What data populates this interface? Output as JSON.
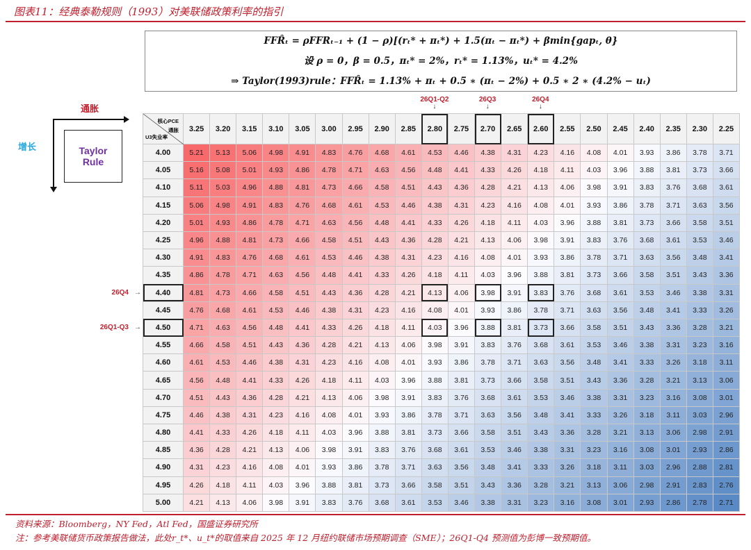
{
  "title": "图表11：经典泰勒规则（1993）对美联储政策利率的指引",
  "formula": {
    "line1": "FFR̂ₜ = ρFFRₜ₋₁ + (1 − ρ)[(rₜ* + πₜ*) + 1.5(πₜ − πₜ*) + βmin{gapₜ, θ}",
    "line2": "设 ρ = 0，β = 0.5，πₜ* = 2%，rₜ* = 1.13%，uₜ* = 4.2%",
    "line3": "⇒ Taylor(1993)rule：FFR̂ₜ = 1.13% + πₜ + 0.5 ∗ (πₜ − 2%) + 0.5 ∗ 2 ∗ (4.2% − uₜ)"
  },
  "diagram": {
    "inflation_label": "通胀",
    "growth_label": "增长",
    "box_label_1": "Taylor",
    "box_label_2": "Rule"
  },
  "annotations": {
    "top": [
      {
        "label": "26Q1-Q2",
        "column": "2.80"
      },
      {
        "label": "26Q3",
        "column": "2.70"
      },
      {
        "label": "26Q4",
        "column": "2.60"
      }
    ],
    "top_arrow": "↓",
    "left": [
      {
        "label": "26Q4",
        "row": "4.40"
      },
      {
        "label": "26Q1-Q3",
        "row": "4.50"
      }
    ],
    "left_arrow": "→"
  },
  "table": {
    "corner": {
      "col_label_1": "核心PCE",
      "col_label_2": "通胀",
      "row_label": "U3失业率"
    },
    "columns": [
      "3.25",
      "3.20",
      "3.15",
      "3.10",
      "3.05",
      "3.00",
      "2.95",
      "2.90",
      "2.85",
      "2.80",
      "2.75",
      "2.70",
      "2.65",
      "2.60",
      "2.55",
      "2.50",
      "2.45",
      "2.40",
      "2.35",
      "2.30",
      "2.25"
    ],
    "rows": [
      "4.00",
      "4.05",
      "4.10",
      "4.15",
      "4.20",
      "4.25",
      "4.30",
      "4.35",
      "4.40",
      "4.45",
      "4.50",
      "4.55",
      "4.60",
      "4.65",
      "4.70",
      "4.75",
      "4.80",
      "4.85",
      "4.90",
      "4.95",
      "5.00"
    ],
    "highlight_columns": [
      "2.80",
      "2.70",
      "2.60"
    ],
    "highlight_rows": [
      "4.40",
      "4.50"
    ],
    "color_scale": {
      "high": "#f8696b",
      "mid": "#fcfcff",
      "low": "#5a8ac6"
    },
    "values": [
      [
        "5.21",
        "5.13",
        "5.06",
        "4.98",
        "4.91",
        "4.83",
        "4.76",
        "4.68",
        "4.61",
        "4.53",
        "4.46",
        "4.38",
        "4.31",
        "4.23",
        "4.16",
        "4.08",
        "4.01",
        "3.93",
        "3.86",
        "3.78",
        "3.71"
      ],
      [
        "5.16",
        "5.08",
        "5.01",
        "4.93",
        "4.86",
        "4.78",
        "4.71",
        "4.63",
        "4.56",
        "4.48",
        "4.41",
        "4.33",
        "4.26",
        "4.18",
        "4.11",
        "4.03",
        "3.96",
        "3.88",
        "3.81",
        "3.73",
        "3.66"
      ],
      [
        "5.11",
        "5.03",
        "4.96",
        "4.88",
        "4.81",
        "4.73",
        "4.66",
        "4.58",
        "4.51",
        "4.43",
        "4.36",
        "4.28",
        "4.21",
        "4.13",
        "4.06",
        "3.98",
        "3.91",
        "3.83",
        "3.76",
        "3.68",
        "3.61"
      ],
      [
        "5.06",
        "4.98",
        "4.91",
        "4.83",
        "4.76",
        "4.68",
        "4.61",
        "4.53",
        "4.46",
        "4.38",
        "4.31",
        "4.23",
        "4.16",
        "4.08",
        "4.01",
        "3.93",
        "3.86",
        "3.78",
        "3.71",
        "3.63",
        "3.56"
      ],
      [
        "5.01",
        "4.93",
        "4.86",
        "4.78",
        "4.71",
        "4.63",
        "4.56",
        "4.48",
        "4.41",
        "4.33",
        "4.26",
        "4.18",
        "4.11",
        "4.03",
        "3.96",
        "3.88",
        "3.81",
        "3.73",
        "3.66",
        "3.58",
        "3.51"
      ],
      [
        "4.96",
        "4.88",
        "4.81",
        "4.73",
        "4.66",
        "4.58",
        "4.51",
        "4.43",
        "4.36",
        "4.28",
        "4.21",
        "4.13",
        "4.06",
        "3.98",
        "3.91",
        "3.83",
        "3.76",
        "3.68",
        "3.61",
        "3.53",
        "3.46"
      ],
      [
        "4.91",
        "4.83",
        "4.76",
        "4.68",
        "4.61",
        "4.53",
        "4.46",
        "4.38",
        "4.31",
        "4.23",
        "4.16",
        "4.08",
        "4.01",
        "3.93",
        "3.86",
        "3.78",
        "3.71",
        "3.63",
        "3.56",
        "3.48",
        "3.41"
      ],
      [
        "4.86",
        "4.78",
        "4.71",
        "4.63",
        "4.56",
        "4.48",
        "4.41",
        "4.33",
        "4.26",
        "4.18",
        "4.11",
        "4.03",
        "3.96",
        "3.88",
        "3.81",
        "3.73",
        "3.66",
        "3.58",
        "3.51",
        "3.43",
        "3.36"
      ],
      [
        "4.81",
        "4.73",
        "4.66",
        "4.58",
        "4.51",
        "4.43",
        "4.36",
        "4.28",
        "4.21",
        "4.13",
        "4.06",
        "3.98",
        "3.91",
        "3.83",
        "3.76",
        "3.68",
        "3.61",
        "3.53",
        "3.46",
        "3.38",
        "3.31"
      ],
      [
        "4.76",
        "4.68",
        "4.61",
        "4.53",
        "4.46",
        "4.38",
        "4.31",
        "4.23",
        "4.16",
        "4.08",
        "4.01",
        "3.93",
        "3.86",
        "3.78",
        "3.71",
        "3.63",
        "3.56",
        "3.48",
        "3.41",
        "3.33",
        "3.26"
      ],
      [
        "4.71",
        "4.63",
        "4.56",
        "4.48",
        "4.41",
        "4.33",
        "4.26",
        "4.18",
        "4.11",
        "4.03",
        "3.96",
        "3.88",
        "3.81",
        "3.73",
        "3.66",
        "3.58",
        "3.51",
        "3.43",
        "3.36",
        "3.28",
        "3.21"
      ],
      [
        "4.66",
        "4.58",
        "4.51",
        "4.43",
        "4.36",
        "4.28",
        "4.21",
        "4.13",
        "4.06",
        "3.98",
        "3.91",
        "3.83",
        "3.76",
        "3.68",
        "3.61",
        "3.53",
        "3.46",
        "3.38",
        "3.31",
        "3.23",
        "3.16"
      ],
      [
        "4.61",
        "4.53",
        "4.46",
        "4.38",
        "4.31",
        "4.23",
        "4.16",
        "4.08",
        "4.01",
        "3.93",
        "3.86",
        "3.78",
        "3.71",
        "3.63",
        "3.56",
        "3.48",
        "3.41",
        "3.33",
        "3.26",
        "3.18",
        "3.11"
      ],
      [
        "4.56",
        "4.48",
        "4.41",
        "4.33",
        "4.26",
        "4.18",
        "4.11",
        "4.03",
        "3.96",
        "3.88",
        "3.81",
        "3.73",
        "3.66",
        "3.58",
        "3.51",
        "3.43",
        "3.36",
        "3.28",
        "3.21",
        "3.13",
        "3.06"
      ],
      [
        "4.51",
        "4.43",
        "4.36",
        "4.28",
        "4.21",
        "4.13",
        "4.06",
        "3.98",
        "3.91",
        "3.83",
        "3.76",
        "3.68",
        "3.61",
        "3.53",
        "3.46",
        "3.38",
        "3.31",
        "3.23",
        "3.16",
        "3.08",
        "3.01"
      ],
      [
        "4.46",
        "4.38",
        "4.31",
        "4.23",
        "4.16",
        "4.08",
        "4.01",
        "3.93",
        "3.86",
        "3.78",
        "3.71",
        "3.63",
        "3.56",
        "3.48",
        "3.41",
        "3.33",
        "3.26",
        "3.18",
        "3.11",
        "3.03",
        "2.96"
      ],
      [
        "4.41",
        "4.33",
        "4.26",
        "4.18",
        "4.11",
        "4.03",
        "3.96",
        "3.88",
        "3.81",
        "3.73",
        "3.66",
        "3.58",
        "3.51",
        "3.43",
        "3.36",
        "3.28",
        "3.21",
        "3.13",
        "3.06",
        "2.98",
        "2.91"
      ],
      [
        "4.36",
        "4.28",
        "4.21",
        "4.13",
        "4.06",
        "3.98",
        "3.91",
        "3.83",
        "3.76",
        "3.68",
        "3.61",
        "3.53",
        "3.46",
        "3.38",
        "3.31",
        "3.23",
        "3.16",
        "3.08",
        "3.01",
        "2.93",
        "2.86"
      ],
      [
        "4.31",
        "4.23",
        "4.16",
        "4.08",
        "4.01",
        "3.93",
        "3.86",
        "3.78",
        "3.71",
        "3.63",
        "3.56",
        "3.48",
        "3.41",
        "3.33",
        "3.26",
        "3.18",
        "3.11",
        "3.03",
        "2.96",
        "2.88",
        "2.81"
      ],
      [
        "4.26",
        "4.18",
        "4.11",
        "4.03",
        "3.96",
        "3.88",
        "3.81",
        "3.73",
        "3.66",
        "3.58",
        "3.51",
        "3.43",
        "3.36",
        "3.28",
        "3.21",
        "3.13",
        "3.06",
        "2.98",
        "2.91",
        "2.83",
        "2.76"
      ],
      [
        "4.21",
        "4.13",
        "4.06",
        "3.98",
        "3.91",
        "3.83",
        "3.76",
        "3.68",
        "3.61",
        "3.53",
        "3.46",
        "3.38",
        "3.31",
        "3.23",
        "3.16",
        "3.08",
        "3.01",
        "2.93",
        "2.86",
        "2.78",
        "2.71"
      ]
    ]
  },
  "footer": {
    "source": "资料来源：Bloomberg，NY Fed，Atl Fed，国盛证券研究所",
    "note": "注：参考美联储货币政策报告做法，此处r_t*、u_t*的取值来自 2025 年 12 月纽约联储市场预期调查（SME）；26Q1-Q4 预测值为彭博一致预期值。"
  }
}
